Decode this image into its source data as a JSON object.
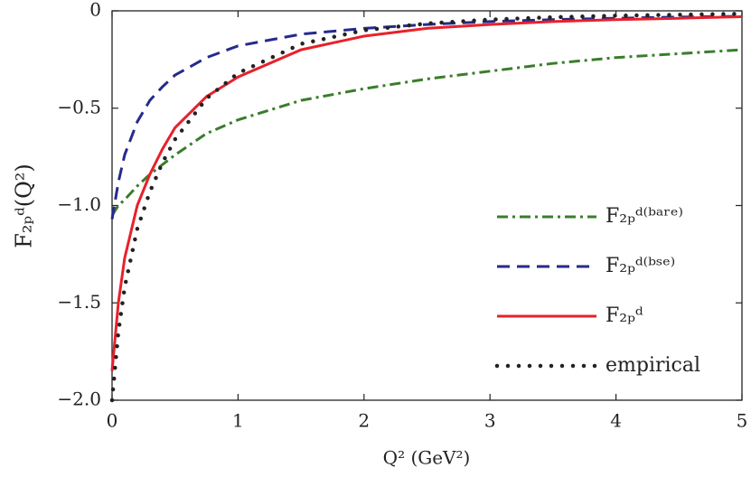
{
  "chart_data": {
    "type": "line",
    "xlabel": "Q² (GeV²)",
    "ylabel": "F₂ₚᵈ(Q²)",
    "x": [
      0,
      0.05,
      0.1,
      0.2,
      0.3,
      0.4,
      0.5,
      0.75,
      1,
      1.5,
      2,
      2.5,
      3,
      3.5,
      4,
      4.5,
      5
    ],
    "series": [
      {
        "name": "F₂ₚᵈ⁽ᵇᵃʳᵉ⁾",
        "color": "#3a7d2c",
        "linestyle": "dashdot",
        "values": [
          -1.05,
          -1.0,
          -0.97,
          -0.9,
          -0.84,
          -0.79,
          -0.74,
          -0.63,
          -0.56,
          -0.46,
          -0.4,
          -0.35,
          -0.31,
          -0.27,
          -0.24,
          -0.22,
          -0.2
        ]
      },
      {
        "name": "F₂ₚᵈ⁽ᵇˢᵉ⁾",
        "color": "#262a8c",
        "linestyle": "dashed",
        "values": [
          -1.07,
          -0.88,
          -0.74,
          -0.57,
          -0.46,
          -0.39,
          -0.33,
          -0.24,
          -0.18,
          -0.12,
          -0.09,
          -0.07,
          -0.055,
          -0.045,
          -0.038,
          -0.032,
          -0.028
        ]
      },
      {
        "name": "F₂ₚᵈ",
        "color": "#e8212b",
        "linestyle": "solid",
        "values": [
          -1.85,
          -1.5,
          -1.27,
          -1.0,
          -0.84,
          -0.71,
          -0.6,
          -0.44,
          -0.34,
          -0.2,
          -0.13,
          -0.09,
          -0.07,
          -0.055,
          -0.045,
          -0.038,
          -0.03
        ]
      },
      {
        "name": "empirical",
        "color": "#222222",
        "linestyle": "dotted",
        "values": [
          -2.0,
          -1.65,
          -1.42,
          -1.12,
          -0.93,
          -0.78,
          -0.66,
          -0.45,
          -0.32,
          -0.17,
          -0.1,
          -0.065,
          -0.045,
          -0.033,
          -0.025,
          -0.02,
          -0.015
        ]
      }
    ],
    "xlim": [
      0,
      5
    ],
    "xticks": [
      0,
      1,
      2,
      3,
      4,
      5
    ],
    "ylim": [
      -2.0,
      0
    ],
    "yticks": [
      0,
      {
        "value": -0.5,
        "label": "−0.5"
      },
      {
        "value": -1.0,
        "label": "−1.0"
      },
      {
        "value": -1.5,
        "label": "−1.5"
      },
      {
        "value": -2.0,
        "label": "−2.0"
      }
    ],
    "legend": "lower right"
  }
}
